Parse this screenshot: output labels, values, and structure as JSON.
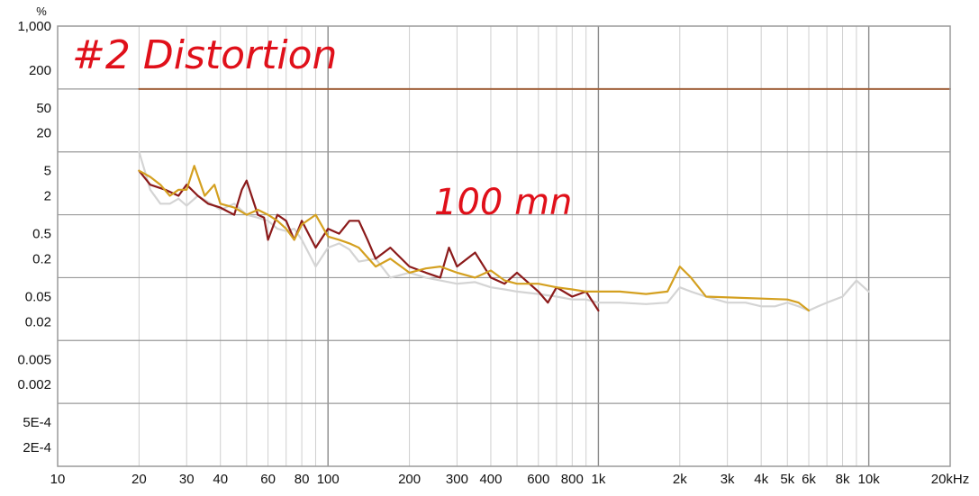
{
  "chart_data": {
    "type": "line",
    "title": "",
    "xlabel": "",
    "ylabel": "",
    "y_unit": "%",
    "x_scale": "log",
    "y_scale": "log",
    "xlim": [
      10,
      20000
    ],
    "ylim": [
      0.0001,
      1000
    ],
    "grid": true,
    "x_ticks": [
      10,
      20,
      30,
      40,
      60,
      80,
      100,
      200,
      300,
      400,
      600,
      800,
      1000,
      2000,
      3000,
      4000,
      5000,
      6000,
      8000,
      10000,
      20000
    ],
    "x_tick_labels": [
      "10",
      "20",
      "30",
      "40",
      "60",
      "80",
      "100",
      "200",
      "300",
      "400",
      "600",
      "800",
      "1k",
      "2k",
      "3k",
      "4k",
      "5k",
      "6k",
      "8k",
      "10k",
      "20kHz"
    ],
    "y_ticks": [
      1000,
      200,
      50,
      20,
      5,
      2,
      0.5,
      0.2,
      0.05,
      0.02,
      0.005,
      0.002,
      0.0005,
      0.0002
    ],
    "y_tick_labels": [
      "1,000",
      "200",
      "50",
      "20",
      "5",
      "2",
      "0.5",
      "0.2",
      "0.05",
      "0.02",
      "0.005",
      "0.002",
      "5E-4",
      "2E-4"
    ],
    "annotations": [
      "#2  Distortion",
      "100 mn"
    ],
    "series": [
      {
        "color": "#a0603a",
        "x": [
          20,
          20000
        ],
        "y": [
          100,
          100
        ]
      },
      {
        "color": "#d4d4d4",
        "x": [
          20,
          21,
          22,
          24,
          26,
          28,
          30,
          33,
          36,
          40,
          45,
          50,
          55,
          60,
          65,
          70,
          75,
          80,
          90,
          100,
          110,
          120,
          130,
          150,
          170,
          200,
          230,
          260,
          300,
          350,
          400,
          450,
          500,
          600,
          700,
          800,
          900,
          1000,
          1200,
          1500,
          1800,
          2000,
          2200,
          2500,
          3000,
          3500,
          4000,
          4500,
          5000,
          5500,
          6000,
          6500,
          7000,
          8000,
          9000,
          10000
        ],
        "y": [
          10,
          5,
          2.5,
          1.5,
          1.5,
          1.8,
          1.4,
          2.0,
          1.6,
          1.2,
          1.5,
          1.0,
          0.9,
          0.8,
          0.6,
          0.55,
          0.6,
          0.4,
          0.15,
          0.3,
          0.35,
          0.28,
          0.18,
          0.2,
          0.1,
          0.12,
          0.1,
          0.09,
          0.08,
          0.085,
          0.07,
          0.065,
          0.06,
          0.055,
          0.05,
          0.045,
          0.045,
          0.04,
          0.04,
          0.038,
          0.04,
          0.07,
          0.06,
          0.05,
          0.04,
          0.04,
          0.035,
          0.035,
          0.04,
          0.035,
          0.03,
          0.035,
          0.04,
          0.05,
          0.09,
          0.06
        ]
      },
      {
        "color": "#8b1a1a",
        "x": [
          20,
          22,
          25,
          28,
          30,
          33,
          36,
          40,
          45,
          48,
          50,
          55,
          58,
          60,
          65,
          70,
          75,
          80,
          90,
          100,
          110,
          120,
          130,
          140,
          150,
          170,
          200,
          230,
          260,
          280,
          300,
          350,
          400,
          450,
          500,
          600,
          650,
          700,
          800,
          900,
          1000
        ],
        "y": [
          5,
          3,
          2.5,
          2.0,
          3.0,
          2.0,
          1.5,
          1.3,
          1.0,
          2.5,
          3.5,
          1.0,
          0.9,
          0.4,
          1.0,
          0.8,
          0.4,
          0.8,
          0.3,
          0.6,
          0.5,
          0.8,
          0.8,
          0.4,
          0.2,
          0.3,
          0.15,
          0.12,
          0.1,
          0.3,
          0.15,
          0.25,
          0.1,
          0.08,
          0.12,
          0.06,
          0.04,
          0.07,
          0.05,
          0.06,
          0.03
        ]
      },
      {
        "color": "#d4a020",
        "x": [
          20,
          22,
          24,
          26,
          28,
          30,
          32,
          35,
          38,
          40,
          45,
          50,
          55,
          60,
          65,
          70,
          75,
          80,
          90,
          100,
          110,
          120,
          130,
          150,
          170,
          200,
          230,
          260,
          300,
          350,
          400,
          450,
          500,
          600,
          700,
          800,
          900,
          1000,
          1200,
          1500,
          1800,
          2000,
          2200,
          2500,
          5000,
          5500,
          6000
        ],
        "y": [
          5,
          4,
          3,
          2.0,
          2.5,
          2.5,
          6,
          2.0,
          3.0,
          1.5,
          1.3,
          1.0,
          1.2,
          1.0,
          0.8,
          0.6,
          0.4,
          0.7,
          1.0,
          0.45,
          0.4,
          0.35,
          0.3,
          0.15,
          0.2,
          0.12,
          0.14,
          0.15,
          0.12,
          0.1,
          0.13,
          0.09,
          0.08,
          0.08,
          0.07,
          0.065,
          0.06,
          0.06,
          0.06,
          0.055,
          0.06,
          0.15,
          0.1,
          0.05,
          0.045,
          0.04,
          0.03
        ]
      }
    ]
  }
}
